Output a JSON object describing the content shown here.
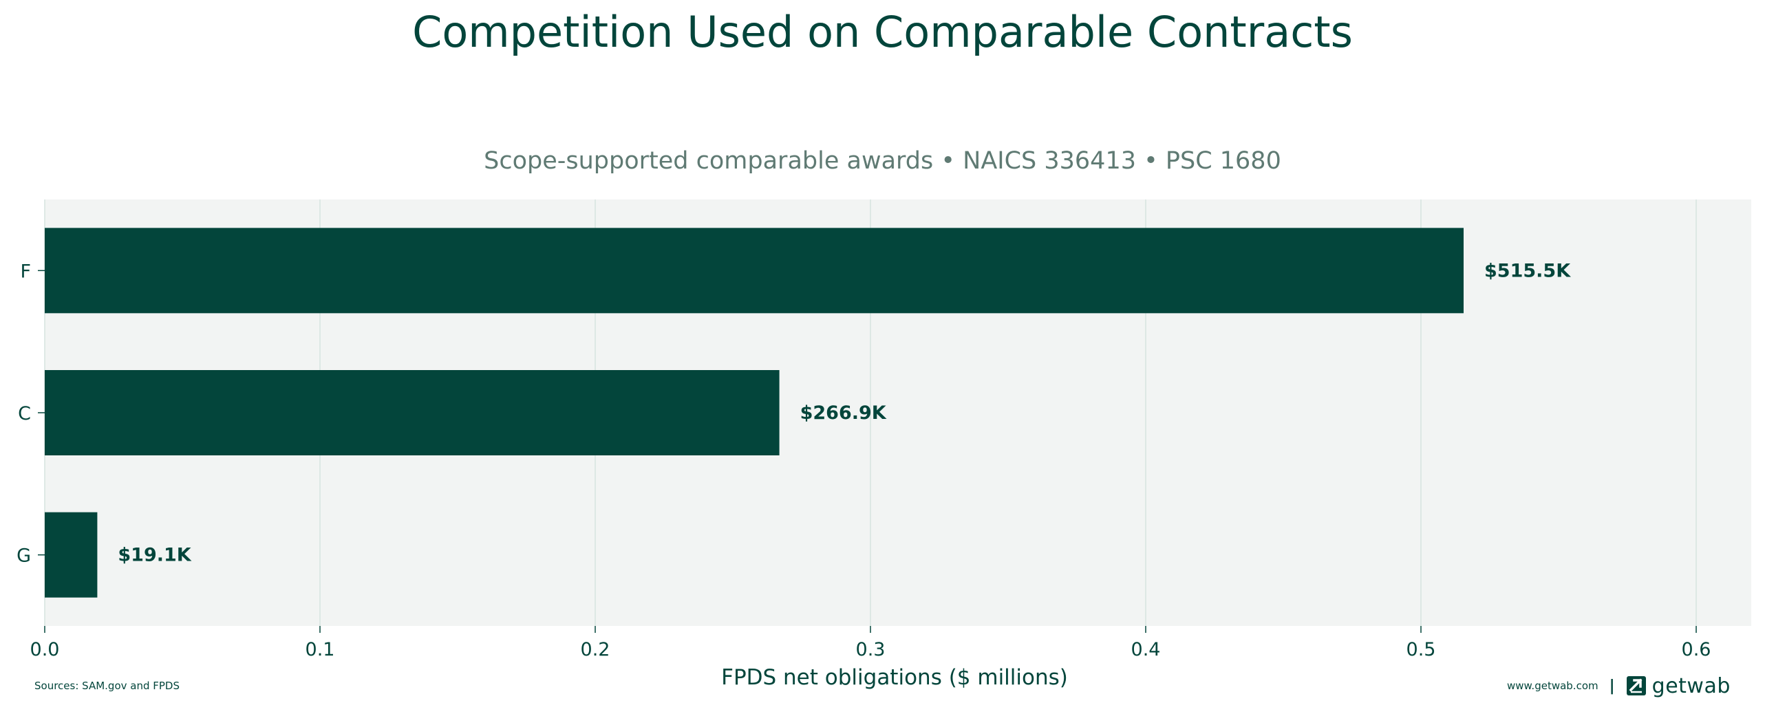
{
  "chart_data": {
    "type": "bar",
    "orientation": "horizontal",
    "title": "Competition Used on Comparable Contracts",
    "subtitle": "Scope-supported comparable awards • NAICS 336413 • PSC 1680",
    "xlabel": "FPDS net obligations ($ millions)",
    "ylabel": "",
    "categories": [
      "F",
      "C",
      "G"
    ],
    "values": [
      0.5155,
      0.2669,
      0.0191
    ],
    "data_labels": [
      "$515.5K",
      "$266.9K",
      "$19.1K"
    ],
    "xlim": [
      0,
      0.62
    ],
    "xticks": [
      0.0,
      0.1,
      0.2,
      0.3,
      0.4,
      0.5,
      0.6
    ],
    "xtick_labels": [
      "0.0",
      "0.1",
      "0.2",
      "0.3",
      "0.4",
      "0.5",
      "0.6"
    ],
    "grid": "vertical",
    "colors": {
      "bar": "#03453b",
      "plot_bg": "#f2f4f3",
      "grid": "#d6e4df",
      "text": "#03453b"
    }
  },
  "footer": {
    "sources": "Sources: SAM.gov and FPDS",
    "website": "www.getwab.com",
    "separator": "|",
    "brand": "getwab",
    "brand_icon": "getwab-logo-icon"
  }
}
